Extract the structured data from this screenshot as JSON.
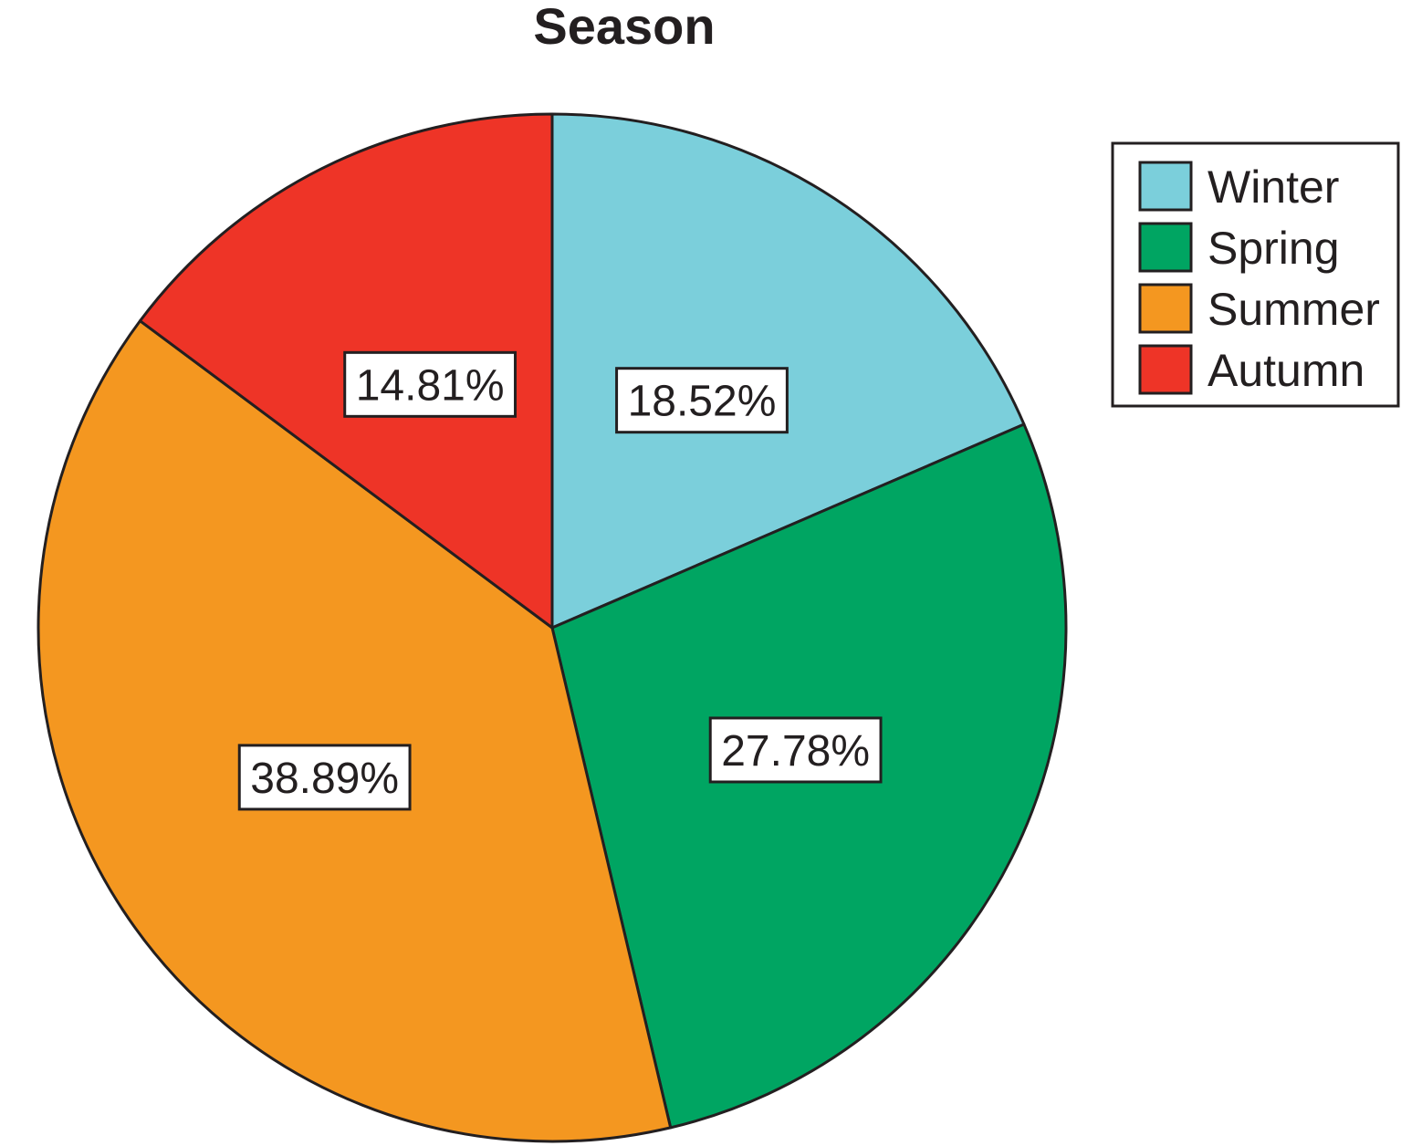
{
  "chart_data": {
    "type": "pie",
    "title": "Season",
    "slices": [
      {
        "name": "Winter",
        "value": 18.52,
        "label": "18.52%",
        "color": "#7bcfdb"
      },
      {
        "name": "Spring",
        "value": 27.78,
        "label": "27.78%",
        "color": "#00a562"
      },
      {
        "name": "Summer",
        "value": 38.89,
        "label": "38.89%",
        "color": "#f49720"
      },
      {
        "name": "Autumn",
        "value": 14.81,
        "label": "14.81%",
        "color": "#ee3427"
      }
    ],
    "start_angle_deg": 0,
    "direction": "clockwise",
    "legend_position": "top-right"
  }
}
